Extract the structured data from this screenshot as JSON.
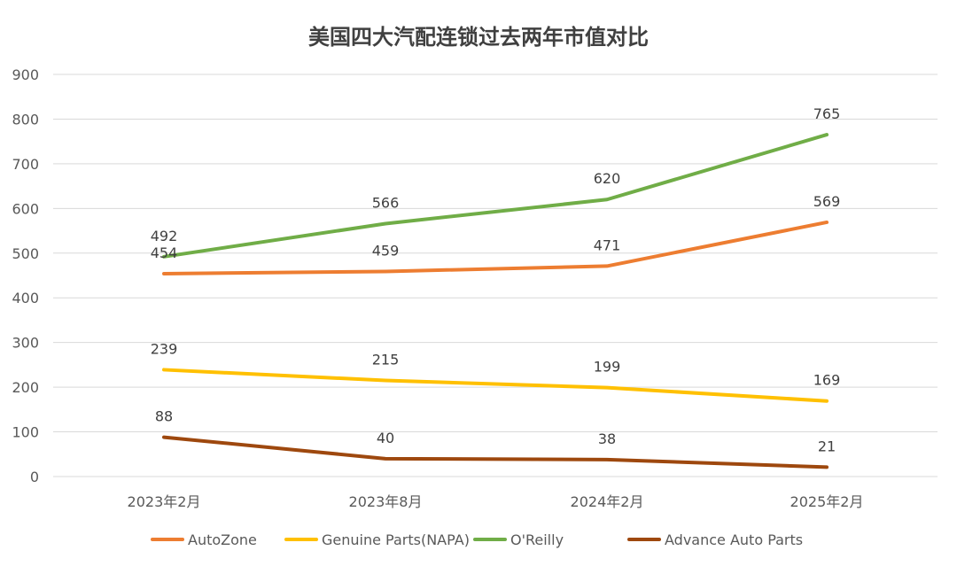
{
  "chart_data": {
    "type": "line",
    "title": "美国四大汽配连锁过去两年市值对比",
    "xlabel": "",
    "ylabel": "",
    "categories": [
      "2023年2月",
      "2023年8月",
      "2024年2月",
      "2025年2月"
    ],
    "ylim": [
      0,
      900
    ],
    "yticks": [
      "0",
      "100",
      "200",
      "300",
      "400",
      "500",
      "600",
      "700",
      "800",
      "900"
    ],
    "grid": true,
    "legend_position": "bottom",
    "series": [
      {
        "name": "AutoZone",
        "color": "#ED7D31",
        "values": [
          454,
          459,
          471,
          569
        ],
        "labels": [
          "454",
          "459",
          "471",
          "569"
        ]
      },
      {
        "name": "Genuine Parts(NAPA)",
        "color": "#FFC000",
        "values": [
          239,
          215,
          199,
          169
        ],
        "labels": [
          "239",
          "215",
          "199",
          "169"
        ]
      },
      {
        "name": "O'Reilly",
        "color": "#70AD47",
        "values": [
          492,
          566,
          620,
          765
        ],
        "labels": [
          "492",
          "566",
          "620",
          "765"
        ]
      },
      {
        "name": "Advance Auto Parts",
        "color": "#9E480E",
        "values": [
          88,
          40,
          38,
          21
        ],
        "labels": [
          "88",
          "40",
          "38",
          "21"
        ]
      }
    ]
  }
}
